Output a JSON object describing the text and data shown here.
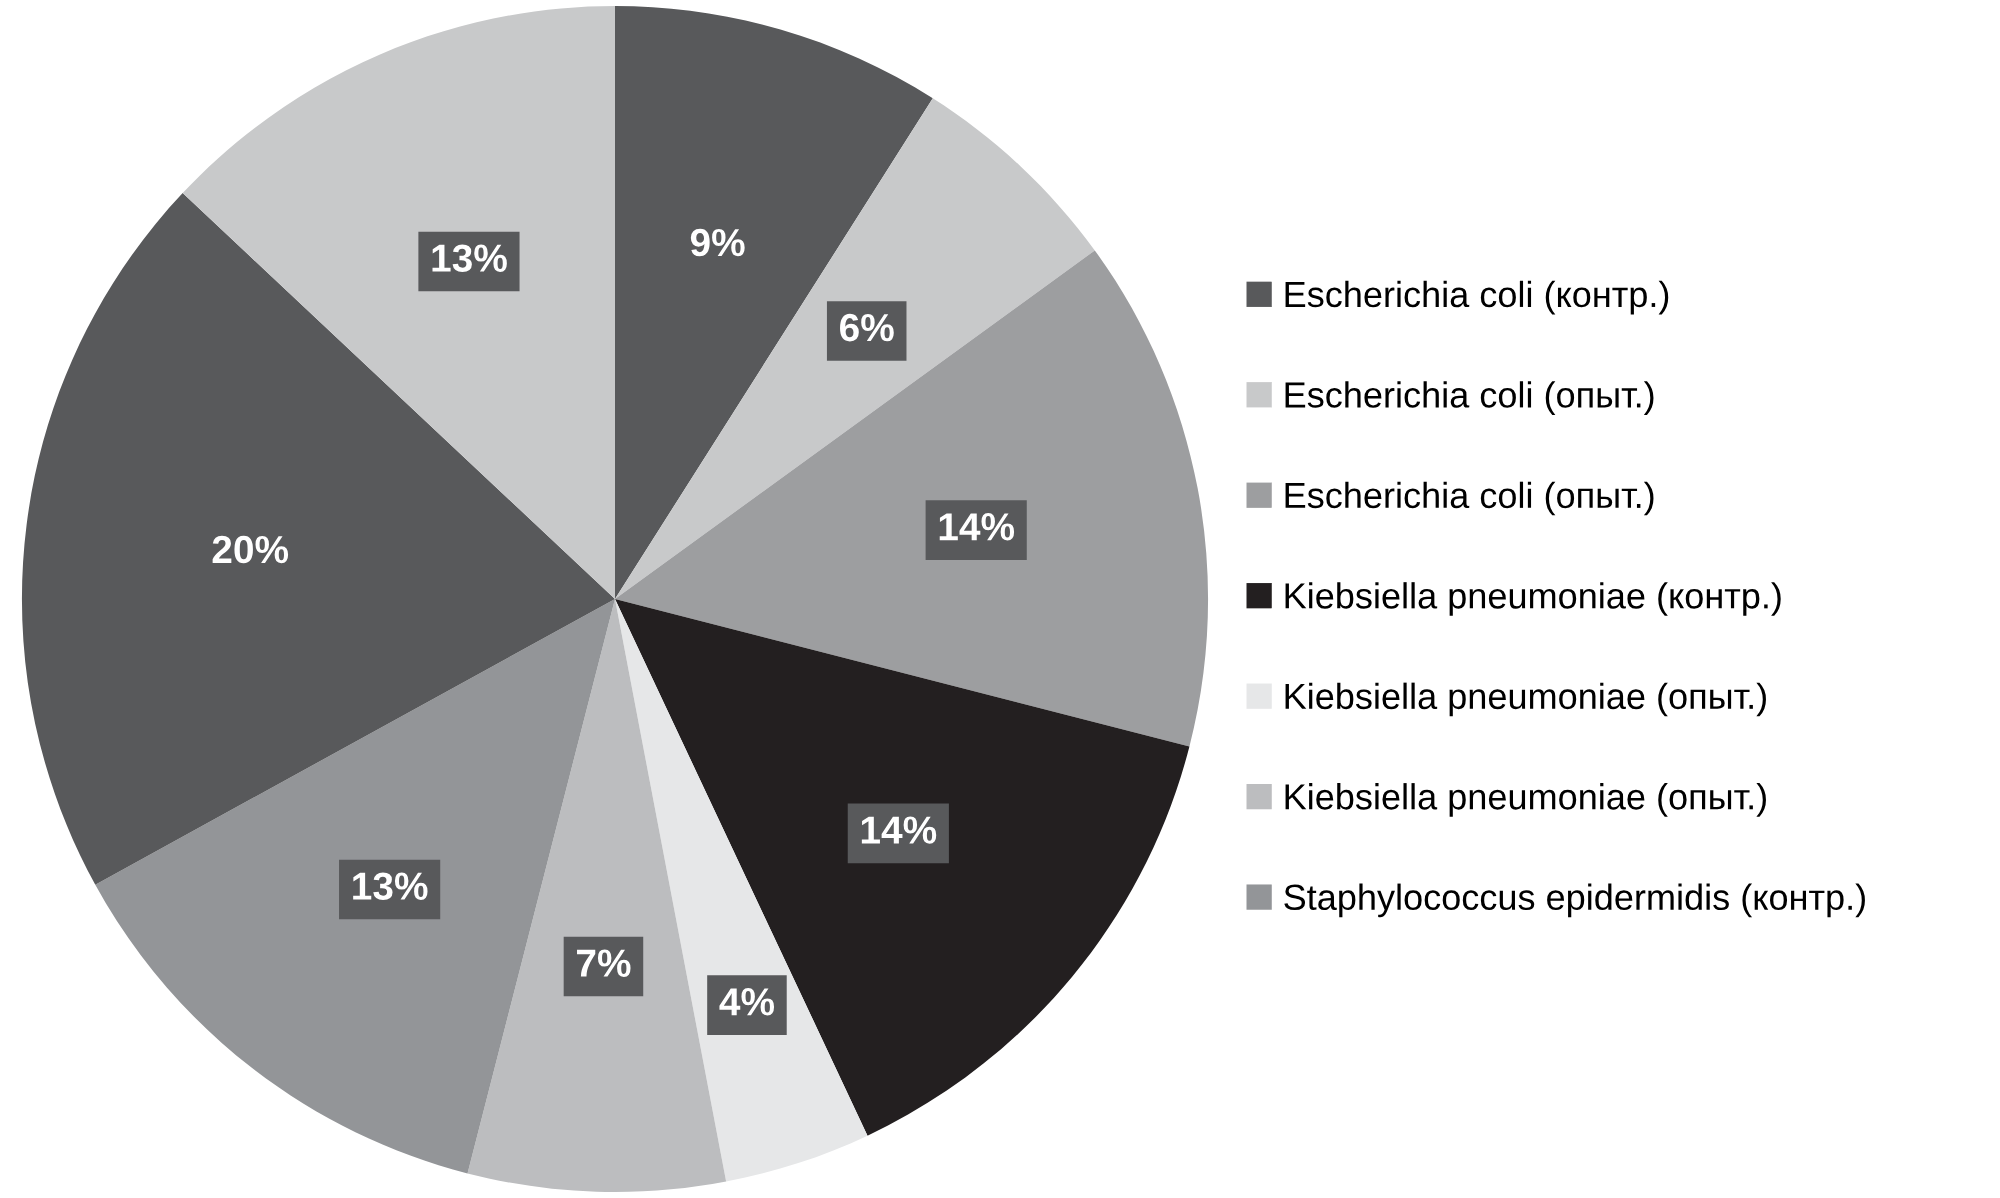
{
  "chart_data": {
    "type": "pie",
    "categories": [
      "Escherichia coli (контр.)",
      "Escherichia coli (опыт.)",
      "Escherichia coli (опыт.)",
      "Kiebsiella pneumoniae (контр.)",
      "Kiebsiella pneumoniae (опыт.)",
      "Kiebsiella pneumoniae (опыт.)",
      "Staphylococcus epidermidis (контр.)",
      null,
      null
    ],
    "values": [
      9,
      6,
      14,
      14,
      4,
      7,
      13,
      20,
      13
    ],
    "colors": [
      "#58595b",
      "#c8c9ca",
      "#9d9ea0",
      "#231f20",
      "#e6e7e8",
      "#bcbdbf",
      "#939598",
      "#58595b",
      "#c8c9ca"
    ],
    "value_labels": [
      "9%",
      "6%",
      "14%",
      "14%",
      "4%",
      "7%",
      "13%",
      "20%",
      "13%"
    ],
    "legend": "right"
  }
}
